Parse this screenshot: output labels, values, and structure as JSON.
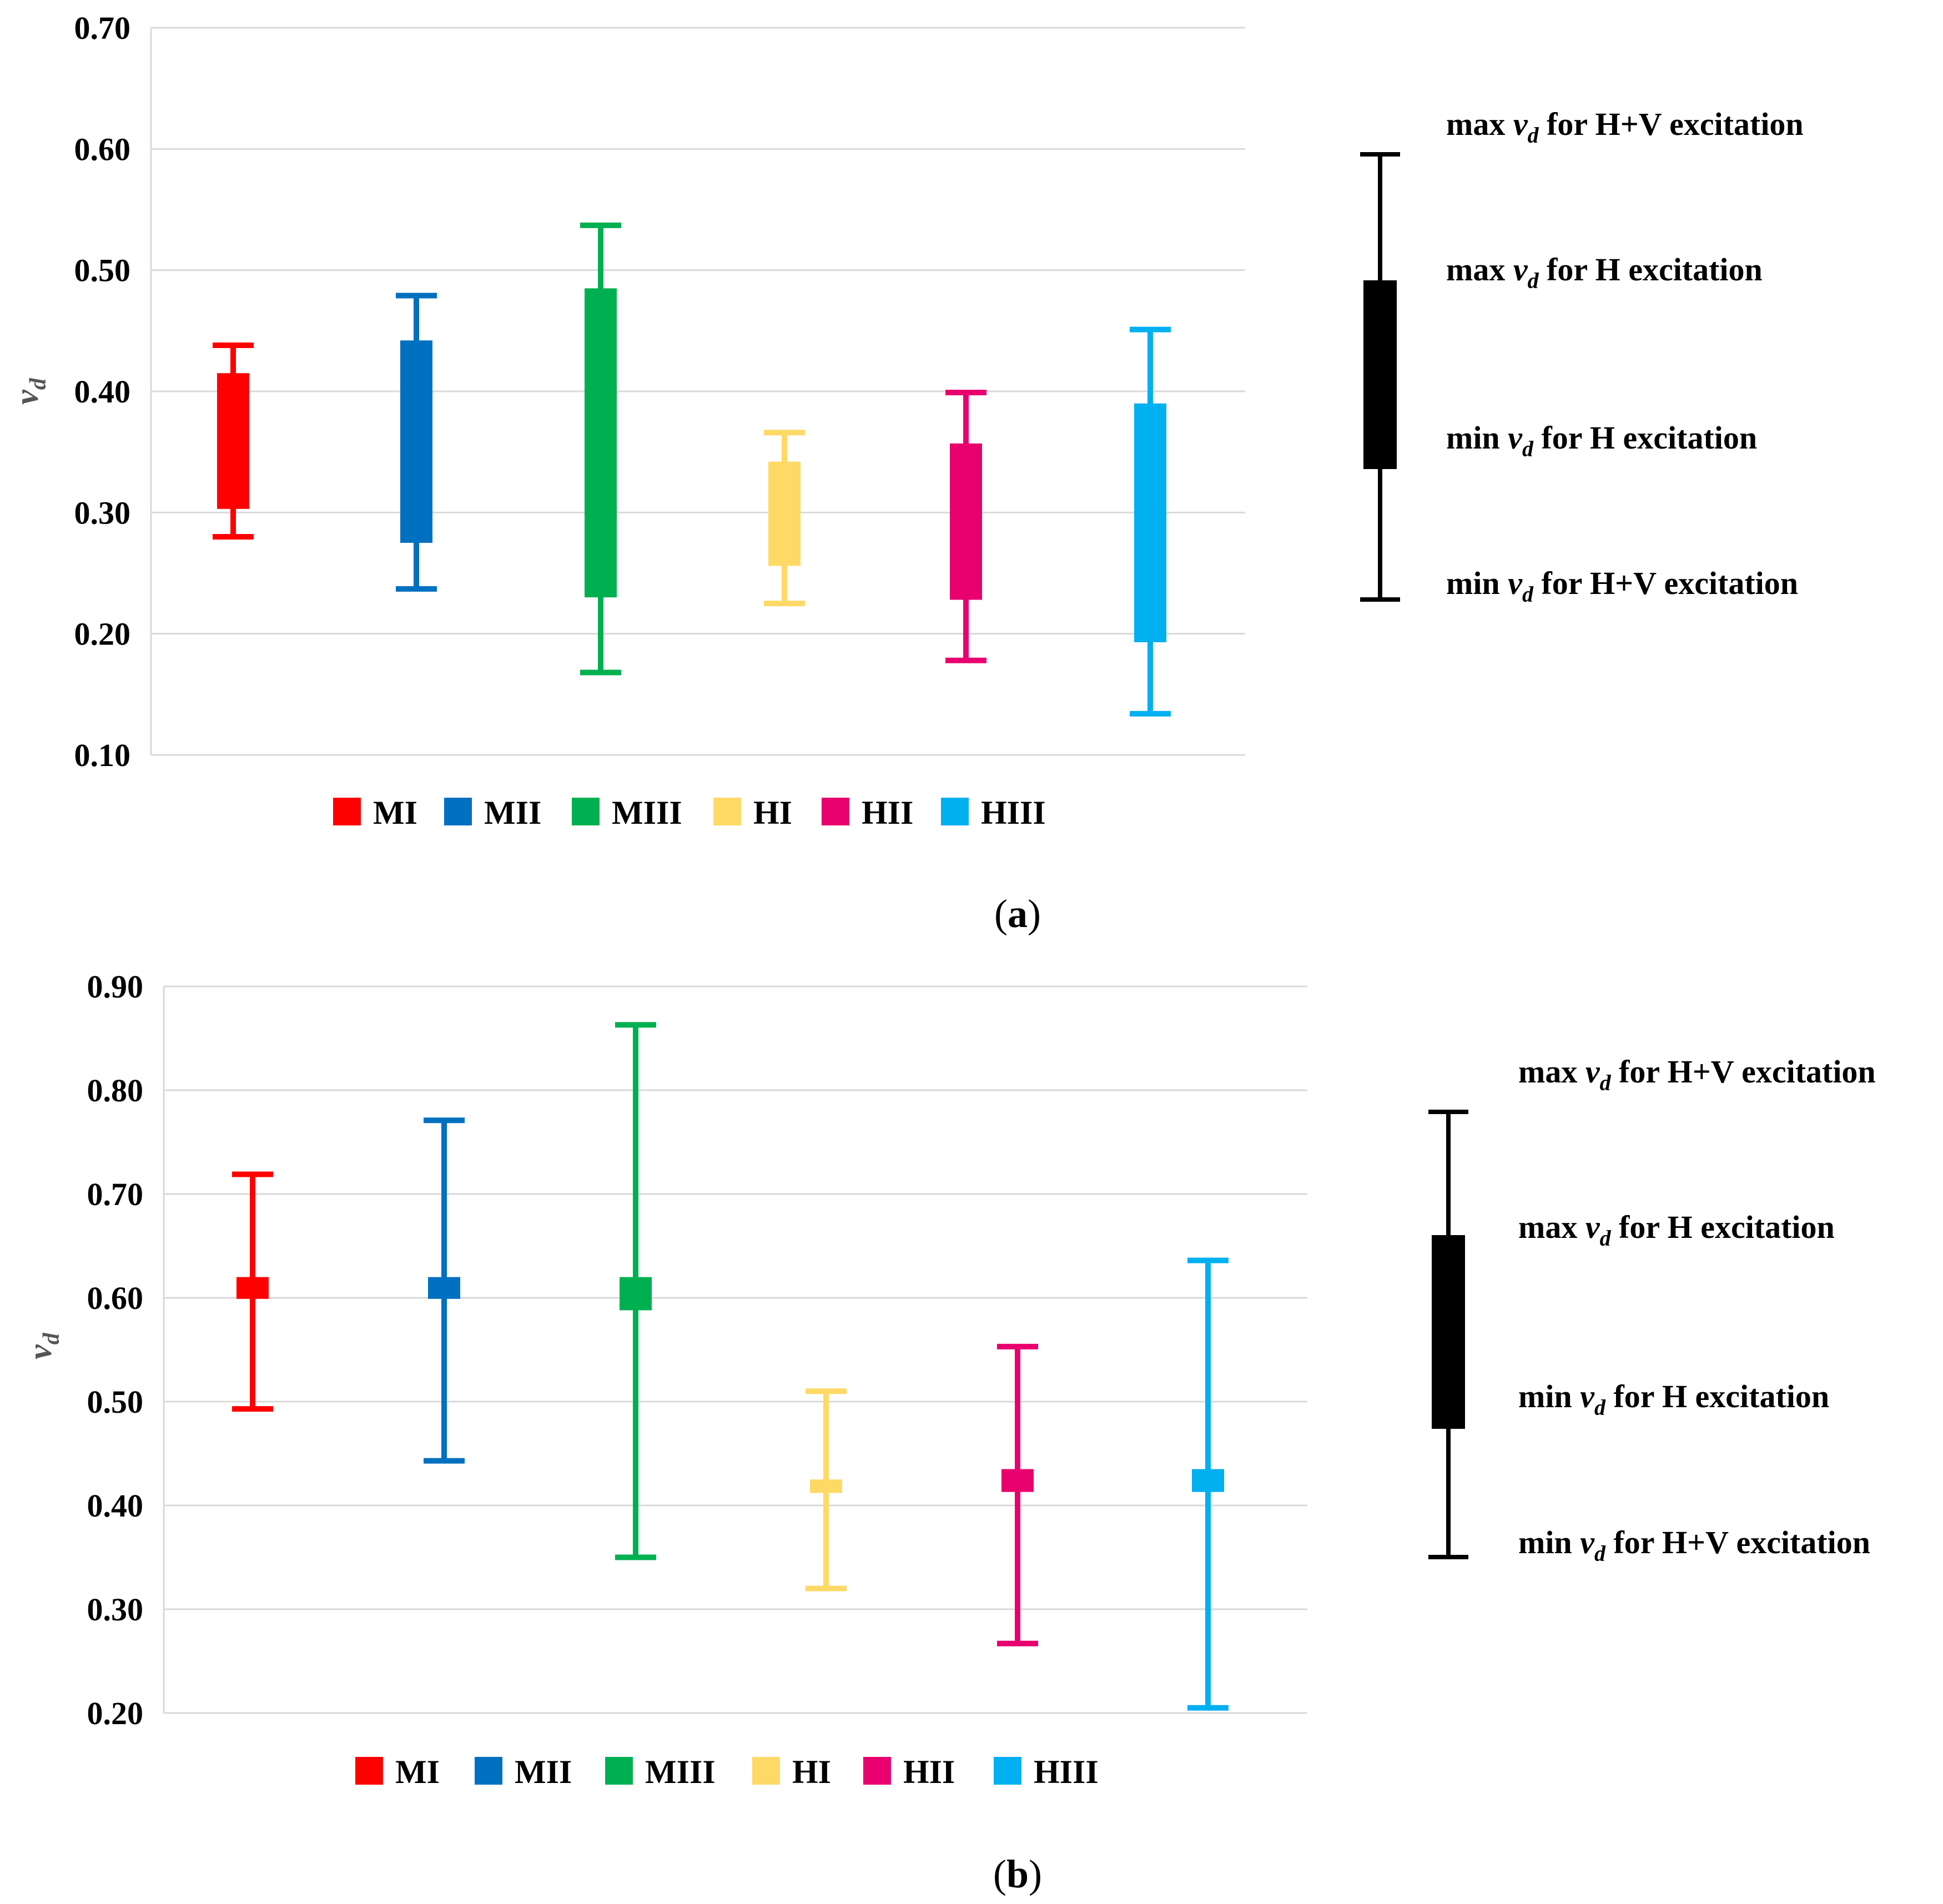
{
  "chart_data": [
    {
      "type": "box-range",
      "panel_label": "a",
      "ylabel": "v",
      "ylabel_sub": "d",
      "ylim": [
        0.1,
        0.7
      ],
      "yticks": [
        "0.10",
        "0.20",
        "0.30",
        "0.40",
        "0.50",
        "0.60",
        "0.70"
      ],
      "grid": true,
      "series": [
        {
          "name": "MI",
          "color": "#ff0000",
          "hv_min": 0.28,
          "h_min": 0.303,
          "h_max": 0.415,
          "hv_max": 0.438
        },
        {
          "name": "MII",
          "color": "#0070c0",
          "hv_min": 0.237,
          "h_min": 0.275,
          "h_max": 0.442,
          "hv_max": 0.479
        },
        {
          "name": "MIII",
          "color": "#00b050",
          "hv_min": 0.168,
          "h_min": 0.23,
          "h_max": 0.485,
          "hv_max": 0.537
        },
        {
          "name": "HI",
          "color": "#ffd966",
          "hv_min": 0.225,
          "h_min": 0.256,
          "h_max": 0.342,
          "hv_max": 0.366
        },
        {
          "name": "HII",
          "color": "#e8006e",
          "hv_min": 0.178,
          "h_min": 0.228,
          "h_max": 0.357,
          "hv_max": 0.399
        },
        {
          "name": "HIII",
          "color": "#00b0f0",
          "hv_min": 0.134,
          "h_min": 0.193,
          "h_max": 0.39,
          "hv_max": 0.451
        }
      ],
      "key_labels": [
        {
          "pre": "max ",
          "var": "v",
          "sub": "d",
          "post": " for H+V excitation"
        },
        {
          "pre": "max ",
          "var": "v",
          "sub": "d",
          "post": " for H excitation"
        },
        {
          "pre": "min ",
          "var": "v",
          "sub": "d",
          "post": " for H excitation"
        },
        {
          "pre": "min ",
          "var": "v",
          "sub": "d",
          "post": " for H+V excitation"
        }
      ]
    },
    {
      "type": "box-range",
      "panel_label": "b",
      "ylabel": "v",
      "ylabel_sub": "d",
      "ylim": [
        0.2,
        0.9
      ],
      "yticks": [
        "0.20",
        "0.30",
        "0.40",
        "0.50",
        "0.60",
        "0.70",
        "0.80",
        "0.90"
      ],
      "grid": true,
      "series": [
        {
          "name": "MI",
          "color": "#ff0000",
          "hv_min": 0.493,
          "h_min": 0.599,
          "h_max": 0.62,
          "hv_max": 0.719
        },
        {
          "name": "MII",
          "color": "#0070c0",
          "hv_min": 0.443,
          "h_min": 0.599,
          "h_max": 0.62,
          "hv_max": 0.771
        },
        {
          "name": "MIII",
          "color": "#00b050",
          "hv_min": 0.35,
          "h_min": 0.588,
          "h_max": 0.62,
          "hv_max": 0.863
        },
        {
          "name": "HI",
          "color": "#ffd966",
          "hv_min": 0.32,
          "h_min": 0.412,
          "h_max": 0.425,
          "hv_max": 0.51
        },
        {
          "name": "HII",
          "color": "#e8006e",
          "hv_min": 0.267,
          "h_min": 0.413,
          "h_max": 0.435,
          "hv_max": 0.553
        },
        {
          "name": "HIII",
          "color": "#00b0f0",
          "hv_min": 0.205,
          "h_min": 0.413,
          "h_max": 0.435,
          "hv_max": 0.636
        }
      ],
      "key_labels": [
        {
          "pre": "max ",
          "var": "v",
          "sub": "d",
          "post": " for H+V excitation"
        },
        {
          "pre": "max ",
          "var": "v",
          "sub": "d",
          "post": " for H excitation"
        },
        {
          "pre": "min ",
          "var": "v",
          "sub": "d",
          "post": " for H excitation"
        },
        {
          "pre": "min ",
          "var": "v",
          "sub": "d",
          "post": " for H+V excitation"
        }
      ]
    }
  ]
}
